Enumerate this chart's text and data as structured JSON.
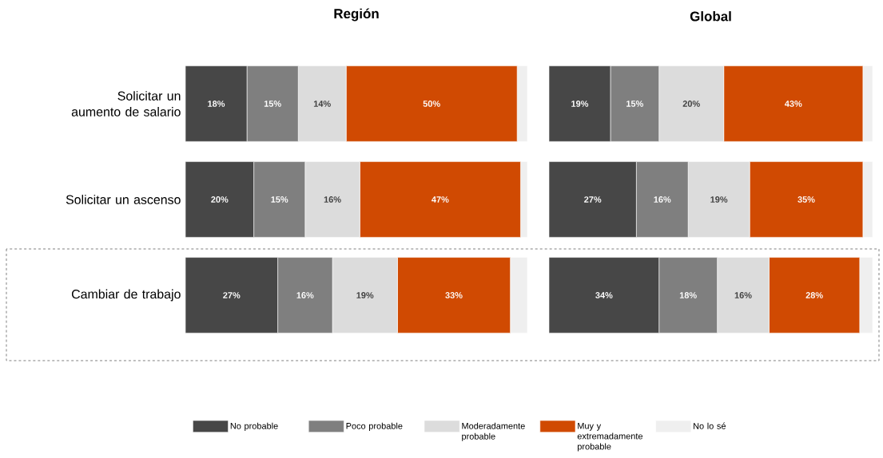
{
  "chart_data": [
    {
      "type": "bar",
      "orientation": "horizontal",
      "stacked": true,
      "title": "Región",
      "categories": [
        "Solicitar un aumento de salario",
        "Solicitar un ascenso",
        "Cambiar de trabajo"
      ],
      "xlim": [
        0,
        100
      ],
      "tick_labels": "y",
      "legend": "bottom",
      "series": [
        {
          "name": "No probable",
          "color": "#474747",
          "values": [
            18,
            20,
            27
          ],
          "value_labels": [
            "18%",
            "20%",
            "27%"
          ]
        },
        {
          "name": "Poco probable",
          "color": "#7f7f7f",
          "values": [
            15,
            15,
            16
          ],
          "value_labels": [
            "15%",
            "15%",
            "16%"
          ]
        },
        {
          "name": "Moderadamente probable",
          "color": "#dcdcdc",
          "values": [
            14,
            16,
            19
          ],
          "value_labels": [
            "14%",
            "16%",
            "19%"
          ]
        },
        {
          "name": "Muy y extremadamente probable",
          "color": "#d04a02",
          "values": [
            50,
            47,
            33
          ],
          "value_labels": [
            "50%",
            "47%",
            "33%"
          ]
        },
        {
          "name": "No lo sé",
          "color": "#efefef",
          "values": [
            3,
            2,
            5
          ]
        }
      ]
    },
    {
      "type": "bar",
      "orientation": "horizontal",
      "stacked": true,
      "title": "Global",
      "categories": [
        null,
        null,
        null
      ],
      "xlim": [
        0,
        100
      ],
      "tick_labels": false,
      "series": [
        {
          "color": "#474747",
          "values": [
            19,
            27,
            34
          ],
          "value_labels": [
            "19%",
            "27%",
            "34%"
          ]
        },
        {
          "color": "#7f7f7f",
          "values": [
            15,
            16,
            18
          ],
          "value_labels": [
            "15%",
            "16%",
            "18%"
          ]
        },
        {
          "color": "#dcdcdc",
          "values": [
            20,
            19,
            16
          ],
          "value_labels": [
            "20%",
            "19%",
            "16%"
          ]
        },
        {
          "color": "#d04a02",
          "values": [
            43,
            35,
            28
          ],
          "value_labels": [
            "43%",
            "35%",
            "28%"
          ]
        },
        {
          "color": "#efefef",
          "values": [
            3,
            3,
            4
          ]
        }
      ]
    }
  ]
}
